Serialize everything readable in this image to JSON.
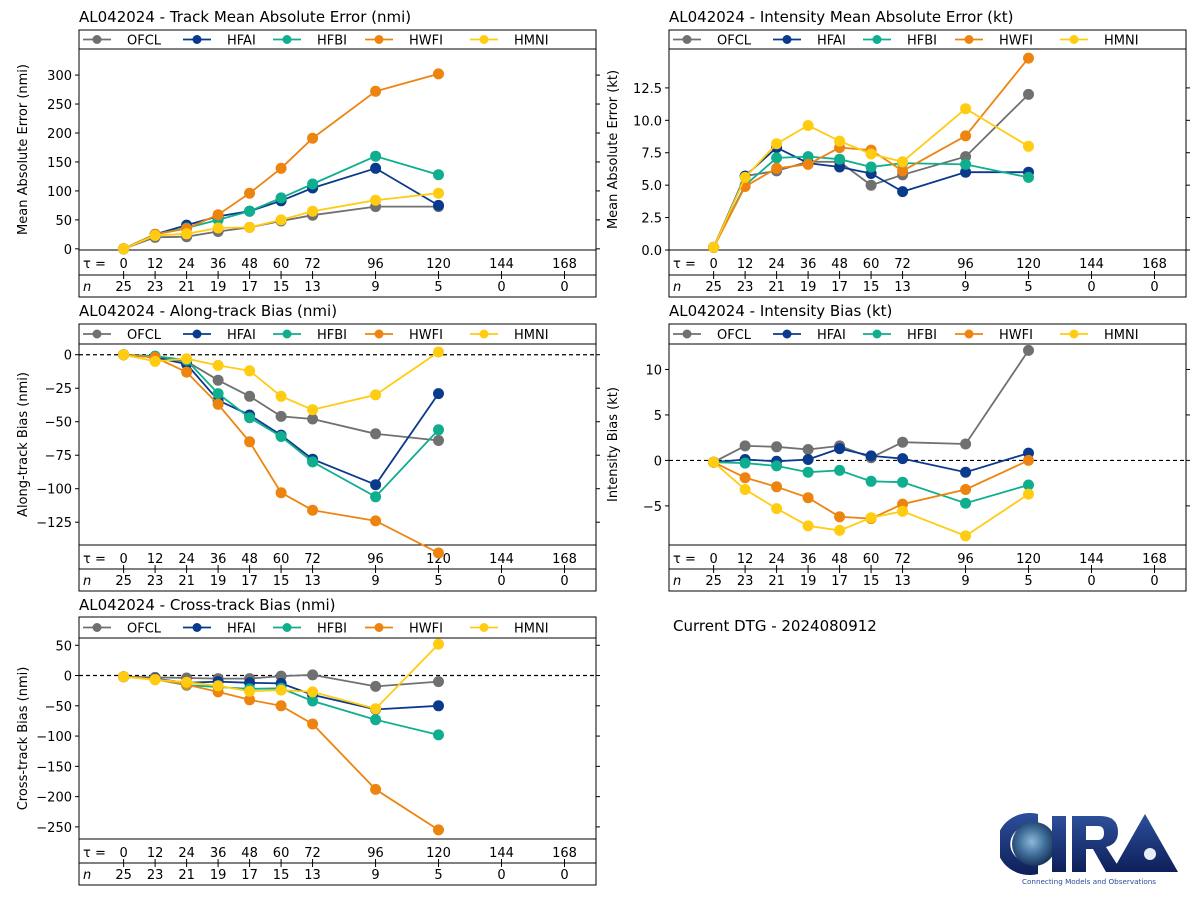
{
  "figure": {
    "dtg_label": "Current DTG - 2024080912",
    "logo": {
      "name": "CIRA",
      "tagline": "Connecting Models and Observations"
    }
  },
  "colors": {
    "OFCL": "#707070",
    "HFAI": "#0a3a8c",
    "HFBI": "#0fae8e",
    "HWFI": "#ee8410",
    "HMNI": "#ffcc11"
  },
  "chart_data": [
    {
      "id": "track-mae",
      "type": "line",
      "title": "AL042024 - Track Mean Absolute Error (nmi)",
      "xlabel": "",
      "ylabel": "Mean Absolute Error (nmi)",
      "ylim": [
        -2,
        345
      ],
      "yticks": [
        0,
        50,
        100,
        150,
        200,
        250,
        300
      ],
      "ytick_labels": [
        "0",
        "50",
        "100",
        "150",
        "200",
        "250",
        "300"
      ],
      "zero_line": false,
      "legend": "top",
      "x": [
        0,
        12,
        24,
        36,
        48,
        60,
        72,
        96,
        120
      ],
      "tau_ticks": [
        0,
        12,
        24,
        36,
        48,
        60,
        72,
        96,
        120,
        144,
        168
      ],
      "n_values": [
        25,
        23,
        21,
        19,
        17,
        15,
        13,
        9,
        5,
        0,
        0
      ],
      "series": [
        {
          "name": "OFCL",
          "values": [
            0,
            20,
            21,
            30,
            37,
            48,
            58,
            73,
            73
          ]
        },
        {
          "name": "HFAI",
          "values": [
            0,
            25,
            41,
            56,
            65,
            83,
            105,
            139,
            75
          ]
        },
        {
          "name": "HFBI",
          "values": [
            0,
            25,
            36,
            50,
            65,
            88,
            112,
            160,
            128
          ]
        },
        {
          "name": "HWFI",
          "values": [
            0,
            25,
            35,
            59,
            96,
            139,
            191,
            272,
            302
          ]
        },
        {
          "name": "HMNI",
          "values": [
            0,
            23,
            26,
            36,
            37,
            50,
            65,
            84,
            96
          ]
        }
      ]
    },
    {
      "id": "intensity-mae",
      "type": "line",
      "title": "AL042024 - Intensity Mean Absolute Error (kt)",
      "xlabel": "",
      "ylabel": "Mean Absolute Error (kt)",
      "ylim": [
        0,
        15.5
      ],
      "yticks": [
        0,
        2.5,
        5,
        7.5,
        10,
        12.5
      ],
      "ytick_labels": [
        "0.0",
        "2.5",
        "5.0",
        "7.5",
        "10.0",
        "12.5"
      ],
      "zero_line": false,
      "legend": "top",
      "x": [
        0,
        12,
        24,
        36,
        48,
        60,
        72,
        96,
        120
      ],
      "tau_ticks": [
        0,
        12,
        24,
        36,
        48,
        60,
        72,
        96,
        120,
        144,
        168
      ],
      "n_values": [
        25,
        23,
        21,
        19,
        17,
        15,
        13,
        9,
        5,
        0,
        0
      ],
      "series": [
        {
          "name": "OFCL",
          "values": [
            0.2,
            5.7,
            6.1,
            6.8,
            6.8,
            5.0,
            5.8,
            7.2,
            12.0
          ]
        },
        {
          "name": "HFAI",
          "values": [
            0.2,
            5.7,
            7.9,
            6.7,
            6.4,
            5.9,
            4.5,
            6.0,
            6.0
          ]
        },
        {
          "name": "HFBI",
          "values": [
            0.2,
            5.0,
            7.1,
            7.2,
            7.0,
            6.4,
            6.7,
            6.6,
            5.6
          ]
        },
        {
          "name": "HWFI",
          "values": [
            0.2,
            4.9,
            6.3,
            6.6,
            7.9,
            7.7,
            6.1,
            8.8,
            14.8
          ]
        },
        {
          "name": "HMNI",
          "values": [
            0.2,
            5.6,
            8.2,
            9.6,
            8.4,
            7.4,
            6.8,
            10.9,
            8.0
          ]
        }
      ]
    },
    {
      "id": "along-track-bias",
      "type": "line",
      "title": "AL042024 - Along-track Bias (nmi)",
      "xlabel": "",
      "ylabel": "Along-track Bias (nmi)",
      "ylim": [
        -142,
        8
      ],
      "yticks": [
        0,
        -25,
        -50,
        -75,
        -100,
        -125
      ],
      "ytick_labels": [
        "0",
        "−25",
        "−50",
        "−75",
        "−100",
        "−125"
      ],
      "zero_line": true,
      "legend": "top",
      "x": [
        0,
        12,
        24,
        36,
        48,
        60,
        72,
        96,
        120
      ],
      "tau_ticks": [
        0,
        12,
        24,
        36,
        48,
        60,
        72,
        96,
        120,
        144,
        168
      ],
      "n_values": [
        25,
        23,
        21,
        19,
        17,
        15,
        13,
        9,
        5,
        0,
        0
      ],
      "series": [
        {
          "name": "OFCL",
          "values": [
            0,
            -2,
            -5,
            -19,
            -31,
            -46,
            -48,
            -59,
            -64
          ]
        },
        {
          "name": "HFAI",
          "values": [
            0,
            -2,
            -7,
            -34,
            -45,
            -60,
            -78,
            -97,
            -29
          ]
        },
        {
          "name": "HFBI",
          "values": [
            0,
            -1,
            -4,
            -29,
            -47,
            -61,
            -80,
            -106,
            -56
          ]
        },
        {
          "name": "HWFI",
          "values": [
            0,
            -2,
            -13,
            -37,
            -65,
            -103,
            -116,
            -124,
            -148
          ]
        },
        {
          "name": "HMNI",
          "values": [
            0,
            -5,
            -3,
            -8,
            -12,
            -31,
            -41,
            -30,
            2
          ]
        }
      ]
    },
    {
      "id": "intensity-bias",
      "type": "line",
      "title": "AL042024 - Intensity Bias (kt)",
      "xlabel": "",
      "ylabel": "Intensity Bias (kt)",
      "ylim": [
        -9.3,
        12.8
      ],
      "yticks": [
        10,
        5,
        0,
        -5
      ],
      "ytick_labels": [
        "10",
        "5",
        "0",
        "−5"
      ],
      "zero_line": true,
      "legend": "top",
      "x": [
        0,
        12,
        24,
        36,
        48,
        60,
        72,
        96,
        120
      ],
      "tau_ticks": [
        0,
        12,
        24,
        36,
        48,
        60,
        72,
        96,
        120,
        144,
        168
      ],
      "n_values": [
        25,
        23,
        21,
        19,
        17,
        15,
        13,
        9,
        5,
        0,
        0
      ],
      "series": [
        {
          "name": "OFCL",
          "values": [
            -0.2,
            1.6,
            1.5,
            1.2,
            1.6,
            0.3,
            2.0,
            1.8,
            12.1
          ]
        },
        {
          "name": "HFAI",
          "values": [
            -0.2,
            0.1,
            -0.1,
            0.1,
            1.3,
            0.5,
            0.2,
            -1.3,
            0.8
          ]
        },
        {
          "name": "HFBI",
          "values": [
            -0.2,
            -0.3,
            -0.6,
            -1.3,
            -1.1,
            -2.3,
            -2.4,
            -4.7,
            -2.7
          ]
        },
        {
          "name": "HWFI",
          "values": [
            -0.2,
            -1.9,
            -2.9,
            -4.1,
            -6.2,
            -6.4,
            -4.8,
            -3.2,
            0.0
          ]
        },
        {
          "name": "HMNI",
          "values": [
            -0.2,
            -3.2,
            -5.3,
            -7.2,
            -7.7,
            -6.3,
            -5.6,
            -8.3,
            -3.7
          ]
        }
      ]
    },
    {
      "id": "cross-track-bias",
      "type": "line",
      "title": "AL042024 - Cross-track Bias (nmi)",
      "xlabel": "",
      "ylabel": "Cross-track Bias (nmi)",
      "ylim": [
        -270,
        62
      ],
      "yticks": [
        50,
        0,
        -50,
        -100,
        -150,
        -200,
        -250
      ],
      "ytick_labels": [
        "50",
        "0",
        "−50",
        "−100",
        "−150",
        "−200",
        "−250"
      ],
      "zero_line": true,
      "legend": "top",
      "x": [
        0,
        12,
        24,
        36,
        48,
        60,
        72,
        96,
        120
      ],
      "tau_ticks": [
        0,
        12,
        24,
        36,
        48,
        60,
        72,
        96,
        120,
        144,
        168
      ],
      "n_values": [
        25,
        23,
        21,
        19,
        17,
        15,
        13,
        9,
        5,
        0,
        0
      ],
      "series": [
        {
          "name": "OFCL",
          "values": [
            -2,
            -3,
            -4,
            -5,
            -5,
            -1,
            1,
            -18,
            -10
          ]
        },
        {
          "name": "HFAI",
          "values": [
            -2,
            -5,
            -12,
            -10,
            -12,
            -13,
            -32,
            -56,
            -50
          ]
        },
        {
          "name": "HFBI",
          "values": [
            -2,
            -6,
            -16,
            -19,
            -22,
            -21,
            -42,
            -73,
            -98
          ]
        },
        {
          "name": "HWFI",
          "values": [
            -2,
            -6,
            -15,
            -27,
            -40,
            -50,
            -80,
            -188,
            -255
          ]
        },
        {
          "name": "HMNI",
          "values": [
            -2,
            -7,
            -11,
            -17,
            -26,
            -24,
            -27,
            -55,
            52
          ]
        }
      ]
    }
  ],
  "tau_label": "τ = ",
  "n_label": "n"
}
